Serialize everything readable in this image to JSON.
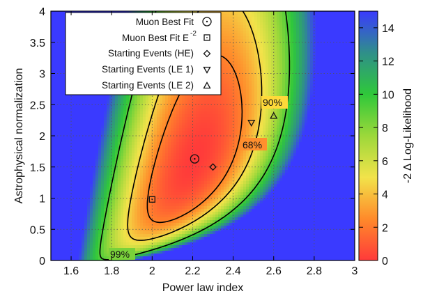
{
  "chart_data": {
    "type": "heatmap",
    "title": "",
    "xlabel": "Power law index",
    "ylabel": "Astrophysical normalization",
    "xlim": [
      1.5,
      3.0
    ],
    "ylim": [
      0,
      4
    ],
    "x_ticks": [
      "1.6",
      "1.8",
      "2",
      "2.2",
      "2.4",
      "2.6",
      "2.8",
      "3"
    ],
    "y_ticks": [
      "0",
      "0.5",
      "1",
      "1.5",
      "2",
      "2.5",
      "3",
      "3.5",
      "4"
    ],
    "grid": true,
    "colorbar": {
      "label": "-2 Δ Log-Likelihood",
      "range": [
        0,
        15
      ],
      "ticks": [
        "0",
        "2",
        "4",
        "6",
        "8",
        "10",
        "12",
        "14"
      ],
      "colors": [
        "#ff3a3a",
        "#ff8a2a",
        "#f2e34a",
        "#9cd83a",
        "#2fc83a",
        "#2f8f8a",
        "#3a3aff"
      ]
    },
    "best_fit": {
      "x": 2.21,
      "y": 1.63
    },
    "contours": [
      {
        "label": "68%",
        "level": 2.3
      },
      {
        "label": "90%",
        "level": 4.6
      },
      {
        "label": "99%",
        "level": 9.2
      }
    ],
    "points": [
      {
        "name": "Muon Best Fit",
        "marker": "circle",
        "x": 2.21,
        "y": 1.63
      },
      {
        "name": "Muon Best Fit E-2",
        "marker": "square",
        "x": 2.0,
        "y": 0.98
      },
      {
        "name": "Starting Events (HE)",
        "marker": "diamond",
        "x": 2.3,
        "y": 1.5
      },
      {
        "name": "Starting Events (LE 1)",
        "marker": "triangle-down",
        "x": 2.49,
        "y": 2.21
      },
      {
        "name": "Starting Events (LE 2)",
        "marker": "triangle-up",
        "x": 2.6,
        "y": 2.32
      }
    ],
    "legend": {
      "position": "top-left",
      "entries": [
        "Muon Best Fit",
        "Muon Best Fit E",
        "Starting Events (HE)",
        "Starting Events (LE 1)",
        "Starting Events (LE 2)"
      ],
      "superscript": "-2"
    }
  }
}
